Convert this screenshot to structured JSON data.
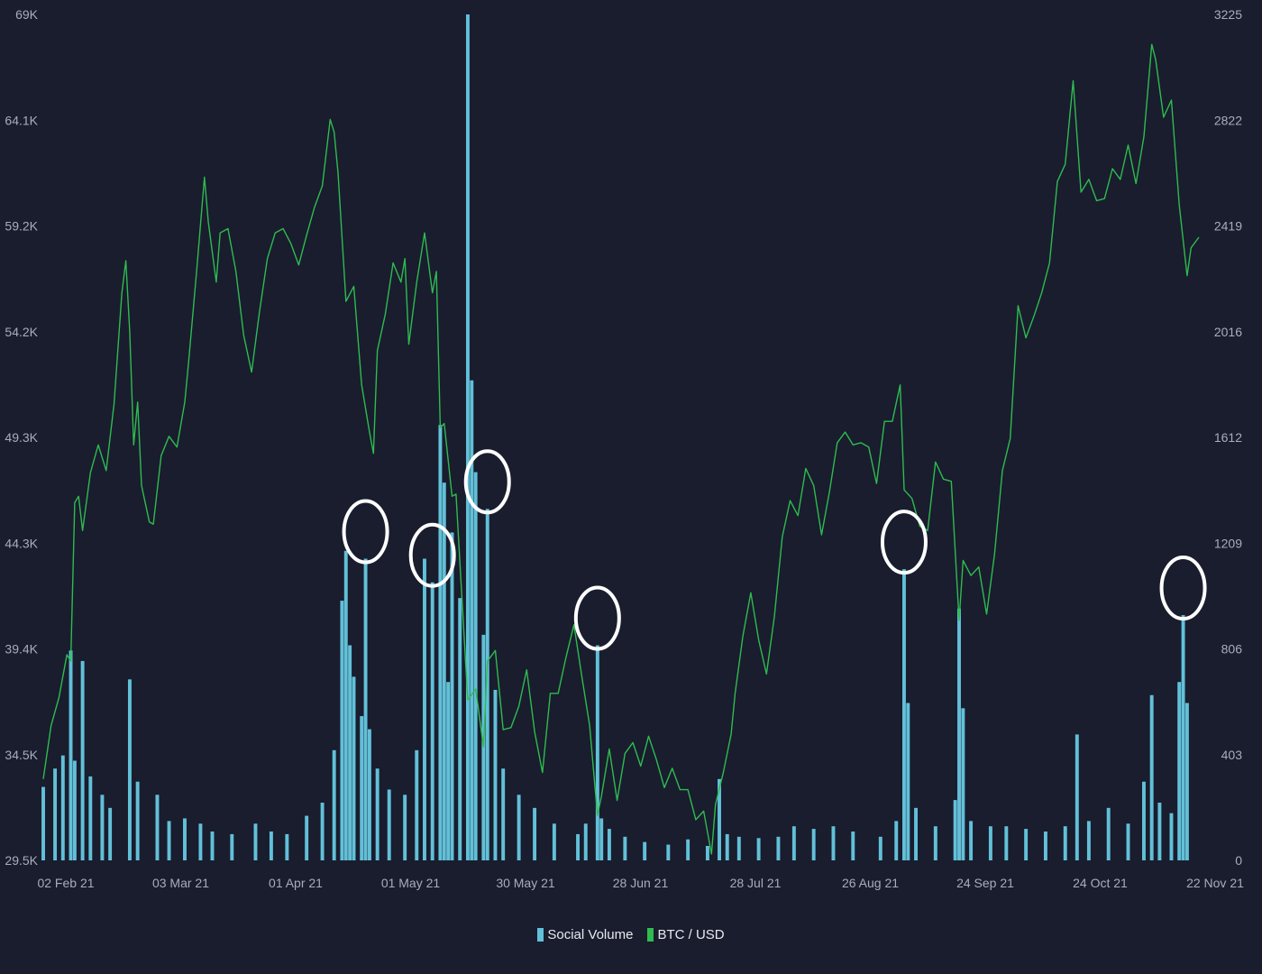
{
  "chart_data": {
    "type": "bar+line",
    "title": "",
    "legend_position": "bottom-center",
    "grid": false,
    "x_ticks": [
      "02 Feb 21",
      "03 Mar 21",
      "01 Apr 21",
      "01 May 21",
      "30 May 21",
      "28 Jun 21",
      "28 Jul 21",
      "26 Aug 21",
      "24 Sep 21",
      "24 Oct 21",
      "22 Nov 21"
    ],
    "x_range": [
      "2021-01-31",
      "2021-11-21"
    ],
    "left_axis": {
      "series": "BTC / USD",
      "ticks": [
        "69K",
        "64.1K",
        "59.2K",
        "54.2K",
        "49.3K",
        "44.3K",
        "39.4K",
        "34.5K",
        "29.5K"
      ],
      "ylim": [
        29500,
        69000
      ]
    },
    "right_axis": {
      "series": "Social Volume",
      "ticks": [
        "3225",
        "2822",
        "2419",
        "2016",
        "1612",
        "1209",
        "806",
        "403",
        "0"
      ],
      "ylim": [
        0,
        3225
      ]
    },
    "series": [
      {
        "name": "Social Volume",
        "kind": "bar",
        "axis": "right",
        "color": "#62c0d8",
        "points": [
          [
            "2021-01-31",
            280
          ],
          [
            "2021-02-03",
            350
          ],
          [
            "2021-02-05",
            400
          ],
          [
            "2021-02-07",
            800
          ],
          [
            "2021-02-08",
            380
          ],
          [
            "2021-02-10",
            760
          ],
          [
            "2021-02-12",
            320
          ],
          [
            "2021-02-15",
            250
          ],
          [
            "2021-02-17",
            200
          ],
          [
            "2021-02-22",
            690
          ],
          [
            "2021-02-24",
            300
          ],
          [
            "2021-03-01",
            250
          ],
          [
            "2021-03-04",
            150
          ],
          [
            "2021-03-08",
            160
          ],
          [
            "2021-03-12",
            140
          ],
          [
            "2021-03-15",
            110
          ],
          [
            "2021-03-20",
            100
          ],
          [
            "2021-03-26",
            140
          ],
          [
            "2021-03-30",
            110
          ],
          [
            "2021-04-03",
            100
          ],
          [
            "2021-04-08",
            170
          ],
          [
            "2021-04-12",
            220
          ],
          [
            "2021-04-15",
            420
          ],
          [
            "2021-04-17",
            990
          ],
          [
            "2021-04-18",
            1180
          ],
          [
            "2021-04-19",
            820
          ],
          [
            "2021-04-20",
            700
          ],
          [
            "2021-04-22",
            550
          ],
          [
            "2021-04-23",
            1150
          ],
          [
            "2021-04-24",
            500
          ],
          [
            "2021-04-26",
            350
          ],
          [
            "2021-04-29",
            270
          ],
          [
            "2021-05-03",
            250
          ],
          [
            "2021-05-06",
            420
          ],
          [
            "2021-05-08",
            1150
          ],
          [
            "2021-05-10",
            1060
          ],
          [
            "2021-05-12",
            1660
          ],
          [
            "2021-05-13",
            1440
          ],
          [
            "2021-05-14",
            680
          ],
          [
            "2021-05-15",
            1250
          ],
          [
            "2021-05-17",
            1000
          ],
          [
            "2021-05-19",
            3225
          ],
          [
            "2021-05-20",
            1830
          ],
          [
            "2021-05-21",
            1480
          ],
          [
            "2021-05-23",
            860
          ],
          [
            "2021-05-24",
            1340
          ],
          [
            "2021-05-26",
            650
          ],
          [
            "2021-05-28",
            350
          ],
          [
            "2021-06-01",
            250
          ],
          [
            "2021-06-05",
            200
          ],
          [
            "2021-06-10",
            140
          ],
          [
            "2021-06-16",
            100
          ],
          [
            "2021-06-18",
            140
          ],
          [
            "2021-06-21",
            820
          ],
          [
            "2021-06-22",
            160
          ],
          [
            "2021-06-24",
            120
          ],
          [
            "2021-06-28",
            90
          ],
          [
            "2021-07-03",
            70
          ],
          [
            "2021-07-09",
            60
          ],
          [
            "2021-07-14",
            80
          ],
          [
            "2021-07-19",
            55
          ],
          [
            "2021-07-22",
            310
          ],
          [
            "2021-07-24",
            100
          ],
          [
            "2021-07-27",
            90
          ],
          [
            "2021-08-01",
            85
          ],
          [
            "2021-08-06",
            90
          ],
          [
            "2021-08-10",
            130
          ],
          [
            "2021-08-15",
            120
          ],
          [
            "2021-08-20",
            130
          ],
          [
            "2021-08-25",
            110
          ],
          [
            "2021-09-01",
            90
          ],
          [
            "2021-09-05",
            150
          ],
          [
            "2021-09-07",
            1110
          ],
          [
            "2021-09-08",
            600
          ],
          [
            "2021-09-10",
            200
          ],
          [
            "2021-09-15",
            130
          ],
          [
            "2021-09-20",
            230
          ],
          [
            "2021-09-21",
            960
          ],
          [
            "2021-09-22",
            580
          ],
          [
            "2021-09-24",
            150
          ],
          [
            "2021-09-29",
            130
          ],
          [
            "2021-10-03",
            130
          ],
          [
            "2021-10-08",
            120
          ],
          [
            "2021-10-13",
            110
          ],
          [
            "2021-10-18",
            130
          ],
          [
            "2021-10-21",
            480
          ],
          [
            "2021-10-24",
            150
          ],
          [
            "2021-10-29",
            200
          ],
          [
            "2021-11-03",
            140
          ],
          [
            "2021-11-07",
            300
          ],
          [
            "2021-11-09",
            630
          ],
          [
            "2021-11-11",
            220
          ],
          [
            "2021-11-14",
            180
          ],
          [
            "2021-11-16",
            680
          ],
          [
            "2021-11-17",
            935
          ],
          [
            "2021-11-18",
            600
          ]
        ]
      },
      {
        "name": "BTC / USD",
        "kind": "line",
        "axis": "left",
        "color": "#2fbb4f",
        "points": [
          [
            "2021-01-31",
            33300
          ],
          [
            "2021-02-02",
            35800
          ],
          [
            "2021-02-04",
            37100
          ],
          [
            "2021-02-06",
            39100
          ],
          [
            "2021-02-07",
            38800
          ],
          [
            "2021-02-08",
            46200
          ],
          [
            "2021-02-09",
            46500
          ],
          [
            "2021-02-10",
            44900
          ],
          [
            "2021-02-12",
            47600
          ],
          [
            "2021-02-14",
            48900
          ],
          [
            "2021-02-16",
            47700
          ],
          [
            "2021-02-18",
            50800
          ],
          [
            "2021-02-20",
            56000
          ],
          [
            "2021-02-21",
            57500
          ],
          [
            "2021-02-22",
            54200
          ],
          [
            "2021-02-23",
            48900
          ],
          [
            "2021-02-24",
            50900
          ],
          [
            "2021-02-25",
            47000
          ],
          [
            "2021-02-27",
            45300
          ],
          [
            "2021-02-28",
            45200
          ],
          [
            "2021-03-02",
            48400
          ],
          [
            "2021-03-04",
            49300
          ],
          [
            "2021-03-06",
            48800
          ],
          [
            "2021-03-08",
            50900
          ],
          [
            "2021-03-09",
            52800
          ],
          [
            "2021-03-11",
            57000
          ],
          [
            "2021-03-13",
            61400
          ],
          [
            "2021-03-14",
            59300
          ],
          [
            "2021-03-16",
            56500
          ],
          [
            "2021-03-17",
            58800
          ],
          [
            "2021-03-19",
            59000
          ],
          [
            "2021-03-21",
            57000
          ],
          [
            "2021-03-23",
            54000
          ],
          [
            "2021-03-25",
            52300
          ],
          [
            "2021-03-27",
            55100
          ],
          [
            "2021-03-29",
            57600
          ],
          [
            "2021-03-31",
            58800
          ],
          [
            "2021-04-02",
            59000
          ],
          [
            "2021-04-04",
            58300
          ],
          [
            "2021-04-06",
            57300
          ],
          [
            "2021-04-08",
            58700
          ],
          [
            "2021-04-10",
            60000
          ],
          [
            "2021-04-12",
            61000
          ],
          [
            "2021-04-14",
            64100
          ],
          [
            "2021-04-15",
            63500
          ],
          [
            "2021-04-16",
            61600
          ],
          [
            "2021-04-18",
            55600
          ],
          [
            "2021-04-20",
            56300
          ],
          [
            "2021-04-22",
            51700
          ],
          [
            "2021-04-24",
            49500
          ],
          [
            "2021-04-25",
            48500
          ],
          [
            "2021-04-26",
            53300
          ],
          [
            "2021-04-28",
            55000
          ],
          [
            "2021-04-30",
            57400
          ],
          [
            "2021-05-02",
            56500
          ],
          [
            "2021-05-03",
            57600
          ],
          [
            "2021-05-04",
            53600
          ],
          [
            "2021-05-06",
            56500
          ],
          [
            "2021-05-08",
            58800
          ],
          [
            "2021-05-10",
            56000
          ],
          [
            "2021-05-11",
            57000
          ],
          [
            "2021-05-12",
            49700
          ],
          [
            "2021-05-13",
            49900
          ],
          [
            "2021-05-15",
            46500
          ],
          [
            "2021-05-16",
            46600
          ],
          [
            "2021-05-17",
            43400
          ],
          [
            "2021-05-19",
            37000
          ],
          [
            "2021-05-21",
            37500
          ],
          [
            "2021-05-23",
            34800
          ],
          [
            "2021-05-24",
            38800
          ],
          [
            "2021-05-26",
            39300
          ],
          [
            "2021-05-28",
            35600
          ],
          [
            "2021-05-30",
            35700
          ],
          [
            "2021-06-01",
            36700
          ],
          [
            "2021-06-03",
            38400
          ],
          [
            "2021-06-05",
            35500
          ],
          [
            "2021-06-07",
            33600
          ],
          [
            "2021-06-09",
            37300
          ],
          [
            "2021-06-11",
            37300
          ],
          [
            "2021-06-13",
            39000
          ],
          [
            "2021-06-15",
            40500
          ],
          [
            "2021-06-17",
            38100
          ],
          [
            "2021-06-19",
            35800
          ],
          [
            "2021-06-21",
            31600
          ],
          [
            "2021-06-22",
            32500
          ],
          [
            "2021-06-24",
            34700
          ],
          [
            "2021-06-26",
            32300
          ],
          [
            "2021-06-28",
            34500
          ],
          [
            "2021-06-30",
            35000
          ],
          [
            "2021-07-02",
            33900
          ],
          [
            "2021-07-04",
            35300
          ],
          [
            "2021-07-06",
            34200
          ],
          [
            "2021-07-08",
            32900
          ],
          [
            "2021-07-10",
            33800
          ],
          [
            "2021-07-12",
            32800
          ],
          [
            "2021-07-14",
            32800
          ],
          [
            "2021-07-16",
            31400
          ],
          [
            "2021-07-18",
            31800
          ],
          [
            "2021-07-20",
            29800
          ],
          [
            "2021-07-21",
            32100
          ],
          [
            "2021-07-23",
            33600
          ],
          [
            "2021-07-25",
            35400
          ],
          [
            "2021-07-26",
            37300
          ],
          [
            "2021-07-28",
            40000
          ],
          [
            "2021-07-30",
            42000
          ],
          [
            "2021-08-01",
            39800
          ],
          [
            "2021-08-03",
            38200
          ],
          [
            "2021-08-05",
            40900
          ],
          [
            "2021-08-07",
            44600
          ],
          [
            "2021-08-09",
            46300
          ],
          [
            "2021-08-11",
            45600
          ],
          [
            "2021-08-13",
            47800
          ],
          [
            "2021-08-15",
            47000
          ],
          [
            "2021-08-17",
            44700
          ],
          [
            "2021-08-19",
            46700
          ],
          [
            "2021-08-21",
            49000
          ],
          [
            "2021-08-23",
            49500
          ],
          [
            "2021-08-25",
            48900
          ],
          [
            "2021-08-27",
            49000
          ],
          [
            "2021-08-29",
            48800
          ],
          [
            "2021-08-31",
            47100
          ],
          [
            "2021-09-02",
            50000
          ],
          [
            "2021-09-04",
            50000
          ],
          [
            "2021-09-06",
            51700
          ],
          [
            "2021-09-07",
            46800
          ],
          [
            "2021-09-09",
            46400
          ],
          [
            "2021-09-11",
            45100
          ],
          [
            "2021-09-13",
            44900
          ],
          [
            "2021-09-15",
            48100
          ],
          [
            "2021-09-17",
            47300
          ],
          [
            "2021-09-19",
            47200
          ],
          [
            "2021-09-21",
            40700
          ],
          [
            "2021-09-22",
            43500
          ],
          [
            "2021-09-24",
            42800
          ],
          [
            "2021-09-26",
            43200
          ],
          [
            "2021-09-28",
            41000
          ],
          [
            "2021-09-30",
            43800
          ],
          [
            "2021-10-02",
            47700
          ],
          [
            "2021-10-04",
            49200
          ],
          [
            "2021-10-06",
            55400
          ],
          [
            "2021-10-08",
            53900
          ],
          [
            "2021-10-10",
            54900
          ],
          [
            "2021-10-12",
            56000
          ],
          [
            "2021-10-14",
            57400
          ],
          [
            "2021-10-16",
            61200
          ],
          [
            "2021-10-18",
            62000
          ],
          [
            "2021-10-20",
            65900
          ],
          [
            "2021-10-22",
            60700
          ],
          [
            "2021-10-24",
            61300
          ],
          [
            "2021-10-26",
            60300
          ],
          [
            "2021-10-28",
            60400
          ],
          [
            "2021-10-30",
            61800
          ],
          [
            "2021-11-01",
            61300
          ],
          [
            "2021-11-03",
            62900
          ],
          [
            "2021-11-05",
            61100
          ],
          [
            "2021-11-07",
            63300
          ],
          [
            "2021-11-09",
            67600
          ],
          [
            "2021-11-10",
            66900
          ],
          [
            "2021-11-12",
            64200
          ],
          [
            "2021-11-14",
            65000
          ],
          [
            "2021-11-16",
            60100
          ],
          [
            "2021-11-18",
            56800
          ],
          [
            "2021-11-19",
            58100
          ],
          [
            "2021-11-21",
            58600
          ]
        ]
      }
    ],
    "annotations": {
      "shape": "circle",
      "color": "#ffffff",
      "dates": [
        "2021-04-23",
        "2021-05-10",
        "2021-05-24",
        "2021-06-21",
        "2021-09-07",
        "2021-11-17"
      ]
    }
  },
  "legend": {
    "items": [
      {
        "label": "Social Volume",
        "color": "#62c0d8"
      },
      {
        "label": "BTC / USD",
        "color": "#2fbb4f"
      }
    ]
  }
}
